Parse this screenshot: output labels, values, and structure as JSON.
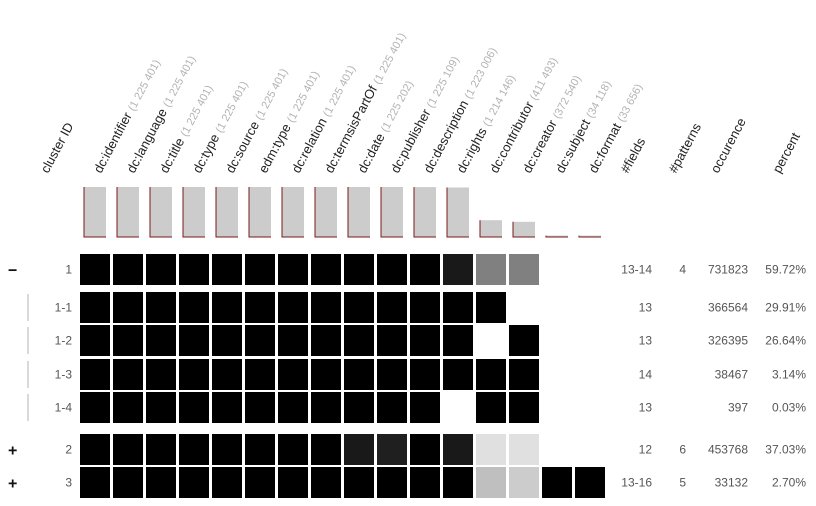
{
  "chart_data": {
    "type": "heatmap",
    "header_first": "cluster ID",
    "fields": [
      {
        "name": "dc:identifier",
        "count": "(1 225 401)",
        "count_value": 1225401
      },
      {
        "name": "dc:language",
        "count": "(1 225 401)",
        "count_value": 1225401
      },
      {
        "name": "dc:title",
        "count": "(1 225 401)",
        "count_value": 1225401
      },
      {
        "name": "dc:type",
        "count": "(1 225 401)",
        "count_value": 1225401
      },
      {
        "name": "dc:source",
        "count": "(1 225 401)",
        "count_value": 1225401
      },
      {
        "name": "edm:type",
        "count": "(1 225 401)",
        "count_value": 1225401
      },
      {
        "name": "dc:relation",
        "count": "(1 225 401)",
        "count_value": 1225401
      },
      {
        "name": "dc:termsisPartOf",
        "count": "(1 225 401)",
        "count_value": 1225401
      },
      {
        "name": "dc:date",
        "count": "(1 225 202)",
        "count_value": 1225202
      },
      {
        "name": "dc:publisher",
        "count": "(1 225 109)",
        "count_value": 1225109
      },
      {
        "name": "dc:description",
        "count": "(1 223 006)",
        "count_value": 1223006
      },
      {
        "name": "dc:rights",
        "count": "(1 214 146)",
        "count_value": 1214146
      },
      {
        "name": "dc:contributor",
        "count": "(411 493)",
        "count_value": 411493
      },
      {
        "name": "dc:creator",
        "count": "(372 540)",
        "count_value": 372540
      },
      {
        "name": "dc:subject",
        "count": "(34 118)",
        "count_value": 34118
      },
      {
        "name": "dc:format",
        "count": "(33 656)",
        "count_value": 33656
      }
    ],
    "stat_headers": [
      "#fields",
      "#patterns",
      "occurence",
      "percent"
    ],
    "rows": [
      {
        "toggle": "−",
        "id": "1",
        "fields": "13-14",
        "patterns": "4",
        "occurence": "731823",
        "percent": "59.72%",
        "cells": [
          1,
          1,
          1,
          1,
          1,
          1,
          1,
          1,
          1,
          1,
          1,
          0.9,
          0.5,
          0.5,
          0,
          0
        ]
      },
      {
        "toggle": "",
        "id": "1-1",
        "fields": "13",
        "patterns": "",
        "occurence": "366564",
        "percent": "29.91%",
        "cells": [
          1,
          1,
          1,
          1,
          1,
          1,
          1,
          1,
          1,
          1,
          1,
          1,
          1,
          0,
          0,
          0
        ]
      },
      {
        "toggle": "",
        "id": "1-2",
        "fields": "13",
        "patterns": "",
        "occurence": "326395",
        "percent": "26.64%",
        "cells": [
          1,
          1,
          1,
          1,
          1,
          1,
          1,
          1,
          1,
          1,
          1,
          1,
          0,
          1,
          0,
          0
        ]
      },
      {
        "toggle": "",
        "id": "1-3",
        "fields": "14",
        "patterns": "",
        "occurence": "38467",
        "percent": "3.14%",
        "cells": [
          1,
          1,
          1,
          1,
          1,
          1,
          1,
          1,
          1,
          1,
          1,
          1,
          1,
          1,
          0,
          0
        ]
      },
      {
        "toggle": "",
        "id": "1-4",
        "fields": "13",
        "patterns": "",
        "occurence": "397",
        "percent": "0.03%",
        "cells": [
          1,
          1,
          1,
          1,
          1,
          1,
          1,
          1,
          1,
          1,
          1,
          0,
          1,
          1,
          0,
          0
        ]
      },
      {
        "toggle": "+",
        "id": "2",
        "fields": "12",
        "patterns": "6",
        "occurence": "453768",
        "percent": "37.03%",
        "cells": [
          1,
          1,
          1,
          1,
          1,
          1,
          1,
          1,
          0.9,
          0.88,
          1,
          0.9,
          0.12,
          0.12,
          0,
          0
        ]
      },
      {
        "toggle": "+",
        "id": "3",
        "fields": "13-16",
        "patterns": "5",
        "occurence": "33132",
        "percent": "2.70%",
        "cells": [
          1,
          1,
          1,
          1,
          1,
          1,
          1,
          1,
          1,
          1,
          1,
          1,
          0.25,
          0.2,
          1,
          1
        ]
      }
    ],
    "sub_rows": [
      1,
      2,
      3,
      4
    ]
  }
}
